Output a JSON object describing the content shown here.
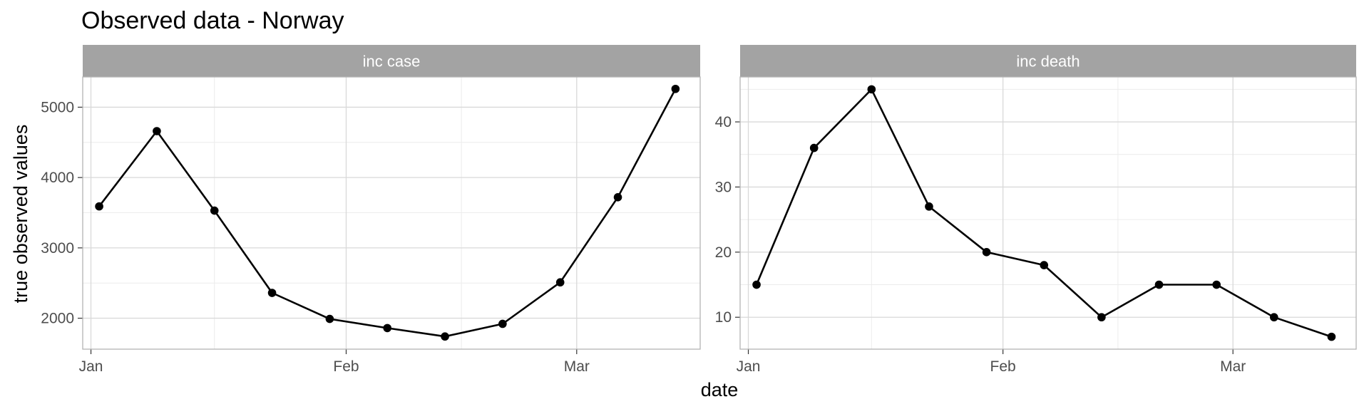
{
  "title": "Observed data - Norway",
  "xlabel": "date",
  "ylabel": "true observed values",
  "colors": {
    "strip": "#a3a3a3",
    "strip_text": "#ffffff",
    "line": "#000000",
    "grid_major": "#d9d9d9",
    "grid_minor": "#ececec",
    "panel_border": "#b3b3b3",
    "tick_text": "#4d4d4d",
    "title_text": "#000000"
  },
  "x_ticks": [
    {
      "label": "Jan",
      "date": "2021-01-01"
    },
    {
      "label": "Feb",
      "date": "2021-02-01"
    },
    {
      "label": "Mar",
      "date": "2021-03-01"
    }
  ],
  "x_minor": [
    "2021-01-16",
    "2021-02-15"
  ],
  "x_range": [
    "2020-12-31",
    "2021-03-16"
  ],
  "chart_data": [
    {
      "type": "line",
      "panel": "inc case",
      "x": [
        "2021-01-02",
        "2021-01-09",
        "2021-01-16",
        "2021-01-23",
        "2021-01-30",
        "2021-02-06",
        "2021-02-13",
        "2021-02-20",
        "2021-02-27",
        "2021-03-06",
        "2021-03-13"
      ],
      "y": [
        3590,
        4660,
        3530,
        2360,
        1990,
        1860,
        1740,
        1920,
        2510,
        3720,
        5260
      ],
      "yticks": [
        2000,
        3000,
        4000,
        5000
      ],
      "yminor": [
        2500,
        3500,
        4500
      ],
      "ylim": [
        1560,
        5430
      ],
      "grid": true
    },
    {
      "type": "line",
      "panel": "inc death",
      "x": [
        "2021-01-02",
        "2021-01-09",
        "2021-01-16",
        "2021-01-23",
        "2021-01-30",
        "2021-02-06",
        "2021-02-13",
        "2021-02-20",
        "2021-02-27",
        "2021-03-06",
        "2021-03-13"
      ],
      "y": [
        15,
        36,
        45,
        27,
        20,
        18,
        10,
        15,
        15,
        10,
        7
      ],
      "yticks": [
        10,
        20,
        30,
        40
      ],
      "yminor": [
        15,
        25,
        35,
        45
      ],
      "ylim": [
        5.1,
        46.9
      ],
      "grid": true
    }
  ]
}
